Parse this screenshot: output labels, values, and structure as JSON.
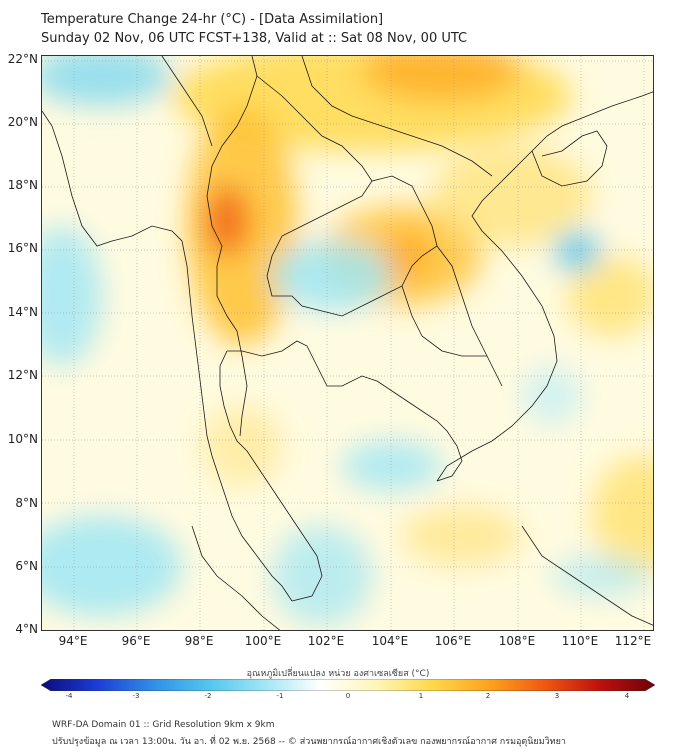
{
  "title": {
    "line1": "Temperature Change 24-hr (°C) - [Data Assimilation]",
    "line2": "Sunday 02 Nov, 06 UTC FCST+138, Valid at :: Sat 08 Nov, 00 UTC"
  },
  "map": {
    "lat_labels": [
      "22°N",
      "20°N",
      "18°N",
      "16°N",
      "14°N",
      "12°N",
      "10°N",
      "8°N",
      "6°N",
      "4°N"
    ],
    "lon_labels": [
      "94°E",
      "96°E",
      "98°E",
      "100°E",
      "102°E",
      "104°E",
      "106°E",
      "108°E",
      "110°E",
      "112°E"
    ],
    "lat_range": [
      4,
      22
    ],
    "lon_range": [
      93,
      112.3
    ]
  },
  "colorbar": {
    "title": "อุณหภูมิเปลี่ยนแปลง หน่วย องศาเซลเซียส (°C)",
    "ticks": [
      "-4",
      "-3",
      "-2",
      "-1",
      "0",
      "1",
      "2",
      "3",
      "4"
    ],
    "range": [
      -4,
      4
    ],
    "colors": [
      "#0b0b7a",
      "#1c3cd6",
      "#2f8ee8",
      "#52c6ee",
      "#9fe6f5",
      "#ffffff",
      "#fff6b8",
      "#ffd84a",
      "#ffa41c",
      "#f05a10",
      "#c0100c",
      "#6e0208"
    ]
  },
  "footer": {
    "line1": "WRF-DA Domain 01 :: Grid Resolution 9km x 9km",
    "line2": "ปรับปรุงข้อมูล ณ เวลา 13:00น. วัน อา. ที่ 02 พ.ย. 2568 -- © ส่วนพยากรณ์อากาศเชิงตัวเลข กองพยากรณ์อากาศ กรมอุตุนิยมวิทยา"
  }
}
